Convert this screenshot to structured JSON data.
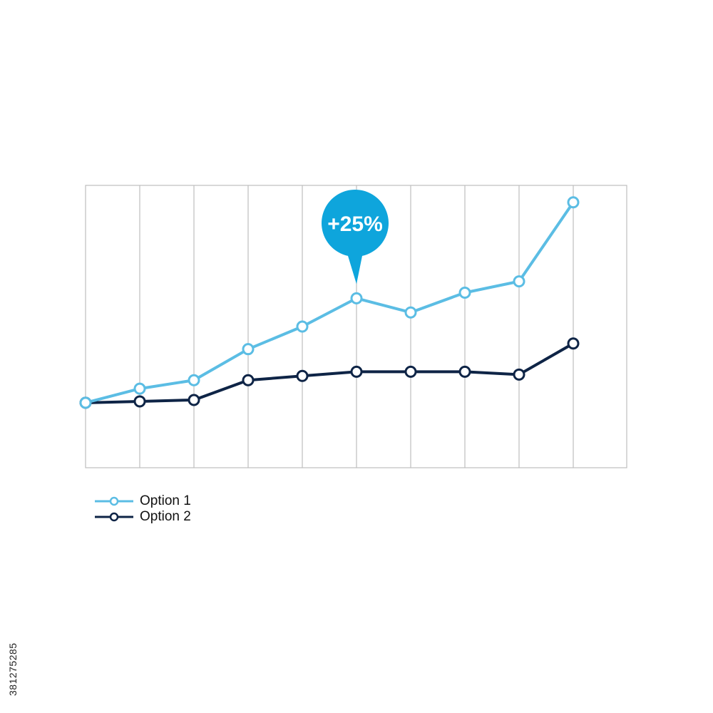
{
  "chart_data": {
    "type": "line",
    "x": [
      1,
      2,
      3,
      4,
      5,
      6,
      7,
      8,
      9,
      10
    ],
    "series": [
      {
        "name": "Option 1",
        "values": [
          0,
          5,
          8,
          19,
          27,
          37,
          32,
          39,
          43,
          71
        ],
        "color": "#5bbde4"
      },
      {
        "name": "Option 2",
        "values": [
          0,
          0.5,
          1,
          8,
          9.5,
          11,
          11,
          11,
          10,
          21
        ],
        "color": "#0e2446"
      }
    ],
    "ylim": [
      -23,
      77
    ],
    "grid": "vertical",
    "legend": "bottom-left",
    "annotation": {
      "text": "+25%",
      "series": "Option 1",
      "point_index": 5,
      "color": "#0ea5dc"
    }
  },
  "legend": {
    "option1_label": "Option 1",
    "option2_label": "Option 2"
  },
  "image_id_text": "381275285",
  "colors": {
    "grid": "#bdbdbd",
    "option1": "#5bbde4",
    "option2": "#0e2446",
    "callout": "#0ea5dc"
  }
}
